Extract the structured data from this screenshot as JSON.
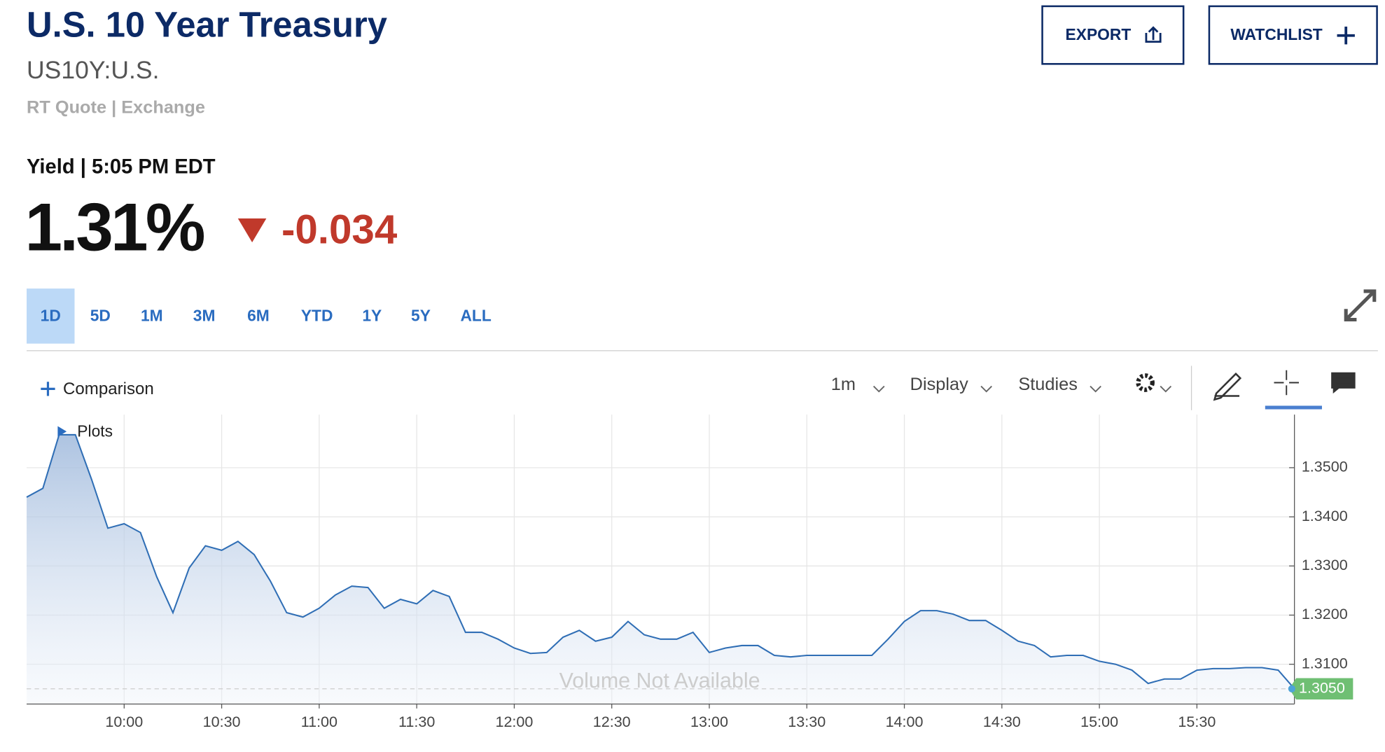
{
  "header": {
    "title": "U.S. 10 Year Treasury",
    "symbol": "US10Y:U.S.",
    "source": "RT Quote | Exchange",
    "yield_label": "Yield | 5:05 PM EDT",
    "price": "1.31%",
    "change": "-0.034"
  },
  "buttons": [
    "EXPORT",
    "WATCHLIST"
  ],
  "ranges": [
    "1D",
    "5D",
    "1M",
    "3M",
    "6M",
    "YTD",
    "1Y",
    "5Y",
    "ALL"
  ],
  "toolbar": {
    "comparison": "Comparison",
    "interval": "1m",
    "display": "Display",
    "studies": "Studies"
  },
  "chart_data": {
    "type": "line",
    "annotations": [
      "Plots",
      "Volume Not Available"
    ],
    "x": [
      "09:30",
      "09:35",
      "09:40",
      "09:45",
      "09:50",
      "09:55",
      "10:00",
      "10:05",
      "10:10",
      "10:15",
      "10:20",
      "10:25",
      "10:30",
      "10:35",
      "10:40",
      "10:45",
      "10:50",
      "10:55",
      "11:00",
      "11:05",
      "11:10",
      "11:15",
      "11:20",
      "11:25",
      "11:30",
      "11:35",
      "11:40",
      "11:45",
      "11:50",
      "11:55",
      "12:00",
      "12:05",
      "12:10",
      "12:15",
      "12:20",
      "12:25",
      "12:30",
      "12:35",
      "12:40",
      "12:45",
      "12:50",
      "12:55",
      "13:00",
      "13:05",
      "13:10",
      "13:15",
      "13:20",
      "13:25",
      "13:30",
      "13:35",
      "13:40",
      "13:45",
      "13:50",
      "13:55",
      "14:00",
      "14:05",
      "14:10",
      "14:15",
      "14:20",
      "14:25",
      "14:30",
      "14:35",
      "14:40",
      "14:45",
      "14:50",
      "14:55",
      "15:00",
      "15:05",
      "15:10",
      "15:15",
      "15:20",
      "15:25",
      "15:30",
      "15:35",
      "15:40",
      "15:45",
      "15:50",
      "15:55",
      "16:00"
    ],
    "series": [
      {
        "name": "US10Y",
        "color": "#2f6eb5",
        "values": [
          1.344,
          1.3458,
          1.3567,
          1.3567,
          1.3476,
          1.3377,
          1.3386,
          1.3368,
          1.3278,
          1.3205,
          1.3296,
          1.3341,
          1.3332,
          1.335,
          1.3323,
          1.3269,
          1.3205,
          1.3196,
          1.3214,
          1.3241,
          1.3259,
          1.3256,
          1.3214,
          1.3232,
          1.3223,
          1.325,
          1.3238,
          1.3165,
          1.3165,
          1.3151,
          1.3133,
          1.3122,
          1.3124,
          1.3155,
          1.3169,
          1.3147,
          1.3155,
          1.3187,
          1.316,
          1.3151,
          1.3151,
          1.3165,
          1.3124,
          1.3133,
          1.3138,
          1.3138,
          1.3118,
          1.3115,
          1.3118,
          1.3118,
          1.3118,
          1.3118,
          1.3118,
          1.3151,
          1.3187,
          1.3209,
          1.3209,
          1.3202,
          1.3189,
          1.3189,
          1.3169,
          1.3147,
          1.3138,
          1.3115,
          1.3118,
          1.3118,
          1.3106,
          1.31,
          1.3088,
          1.3061,
          1.307,
          1.307,
          1.3088,
          1.3091,
          1.3091,
          1.3093,
          1.3093,
          1.3088,
          1.305
        ]
      }
    ],
    "current": {
      "value": 1.305,
      "label": "1.3050"
    },
    "xlim": [
      "09:30",
      "16:00"
    ],
    "xticks": [
      "10:00",
      "10:30",
      "11:00",
      "11:30",
      "12:00",
      "12:30",
      "13:00",
      "13:30",
      "14:00",
      "14:30",
      "15:00",
      "15:30"
    ],
    "ylim": [
      1.3019,
      1.3608
    ],
    "yticks": [
      {
        "value": 1.31,
        "label": "1.3100"
      },
      {
        "value": 1.32,
        "label": "1.3200"
      },
      {
        "value": 1.33,
        "label": "1.3300"
      },
      {
        "value": 1.34,
        "label": "1.3400"
      },
      {
        "value": 1.35,
        "label": "1.3500"
      }
    ],
    "grid": true
  }
}
